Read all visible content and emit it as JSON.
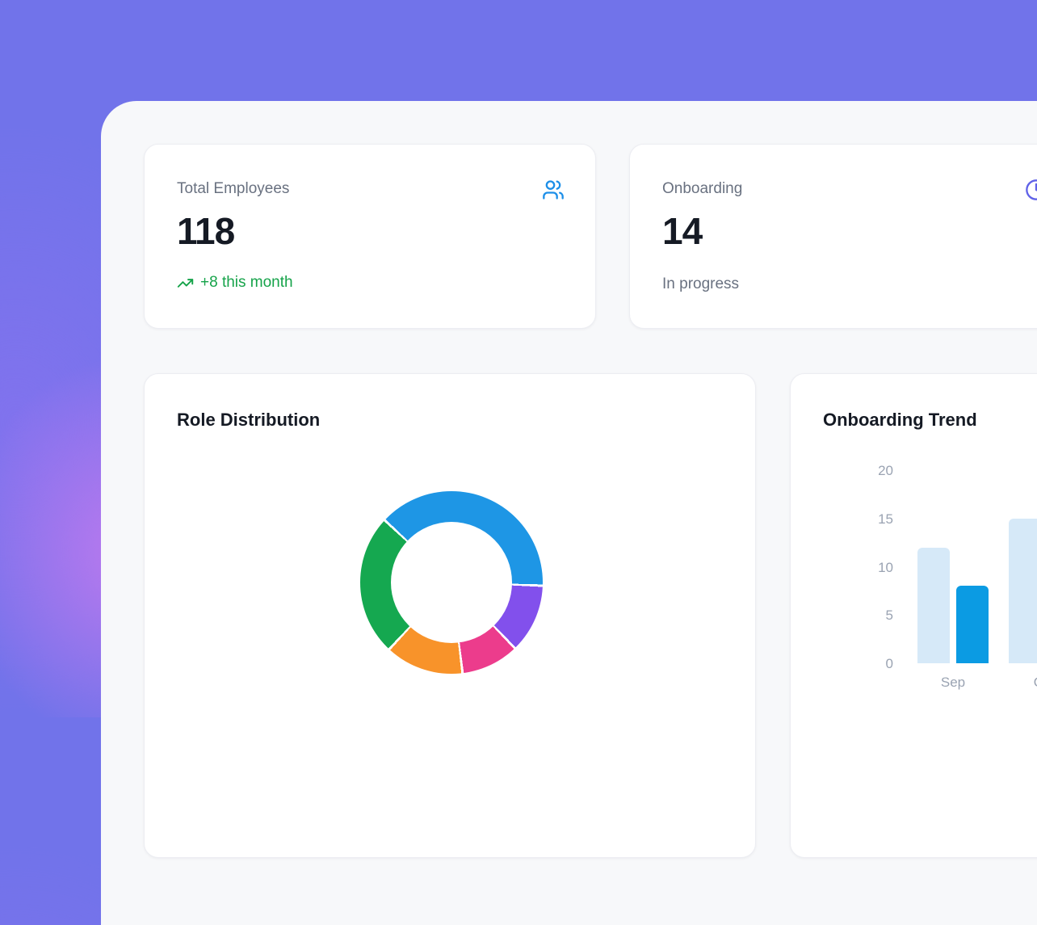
{
  "colors": {
    "background_purple": "#7173ea",
    "background_pink_glow": "#e87df0",
    "panel_bg": "#f7f8fa",
    "card_bg": "#ffffff",
    "text_dark": "#151a24",
    "text_gray": "#697180",
    "axis_gray": "#9aa3b2",
    "trend_green": "#16a34a",
    "users_icon_blue": "#1d8fe8",
    "clock_icon_purple": "#6062e8"
  },
  "stat_cards": [
    {
      "label": "Total Employees",
      "value": "118",
      "trend_label": "+8 this month",
      "icon": "users-icon"
    },
    {
      "label": "Onboarding",
      "value": "14",
      "subtitle": "In progress",
      "icon": "clock-icon"
    }
  ],
  "chart_data": [
    {
      "type": "pie",
      "variant": "donut",
      "title": "Role Distribution",
      "legend": "none",
      "data_labels_visible": false,
      "segments": [
        {
          "name": "segment-blue",
          "color": "#1e96e5",
          "start_deg": -47,
          "end_deg": 92,
          "percent": 38.6
        },
        {
          "name": "segment-purple",
          "color": "#8250ec",
          "start_deg": 92,
          "end_deg": 136,
          "percent": 12.2
        },
        {
          "name": "segment-pink",
          "color": "#ec3c8c",
          "start_deg": 136,
          "end_deg": 173,
          "percent": 10.3
        },
        {
          "name": "segment-orange",
          "color": "#f8932a",
          "start_deg": 173,
          "end_deg": 223,
          "percent": 13.9
        },
        {
          "name": "segment-green",
          "color": "#15a850",
          "start_deg": 223,
          "end_deg": 313,
          "percent": 25.0
        }
      ]
    },
    {
      "type": "bar",
      "title": "Onboarding Trend",
      "categories": [
        "Sep",
        "Oct"
      ],
      "series": [
        {
          "name": "series-light",
          "color": "#d6e9f8",
          "values": [
            12,
            15
          ]
        },
        {
          "name": "series-dark",
          "color": "#0b9be3",
          "values": [
            8,
            null
          ]
        }
      ],
      "ylim": [
        0,
        20
      ],
      "yticks": [
        20,
        15,
        10,
        5,
        0
      ],
      "grid": false,
      "legend": "none"
    }
  ]
}
